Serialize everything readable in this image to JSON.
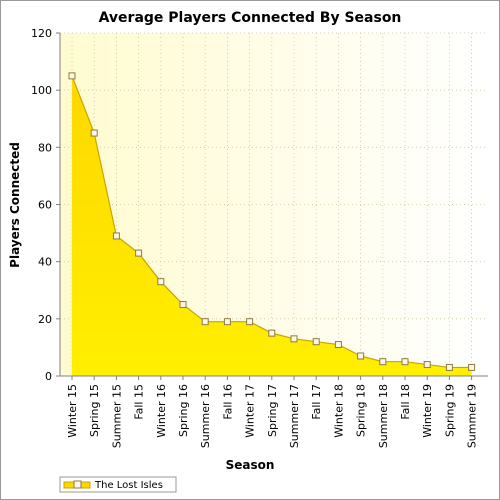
{
  "chart_data": {
    "type": "area",
    "title": "Average Players Connected By Season",
    "xlabel": "Season",
    "ylabel": "Players Connected",
    "ylim": [
      0,
      120
    ],
    "yticks": [
      0,
      20,
      40,
      60,
      80,
      100,
      120
    ],
    "grid": true,
    "legend": "bottom-left",
    "categories": [
      "Winter 15",
      "Spring 15",
      "Summer 15",
      "Fall 15",
      "Winter 16",
      "Spring 16",
      "Summer 16",
      "Fall 16",
      "Winter 17",
      "Spring 17",
      "Summer 17",
      "Fall 17",
      "Winter 18",
      "Spring 18",
      "Summer 18",
      "Fall 18",
      "Winter 19",
      "Spring 19",
      "Summer 19"
    ],
    "series": [
      {
        "name": "The Lost Isles",
        "values": [
          105,
          85,
          49,
          43,
          33,
          25,
          19,
          19,
          19,
          15,
          13,
          12,
          11,
          7,
          5,
          5,
          4,
          3,
          3
        ]
      }
    ],
    "colors": {
      "fill_top": "#ffd700",
      "fill_bottom": "#ffef00",
      "line": "#c8a400",
      "marker_fill": "#fff8e8",
      "marker_stroke": "#8c7a40",
      "plot_bg_left": "#fffbd0",
      "plot_bg_right": "#ffffff",
      "grid": "#c8c8a0"
    }
  }
}
